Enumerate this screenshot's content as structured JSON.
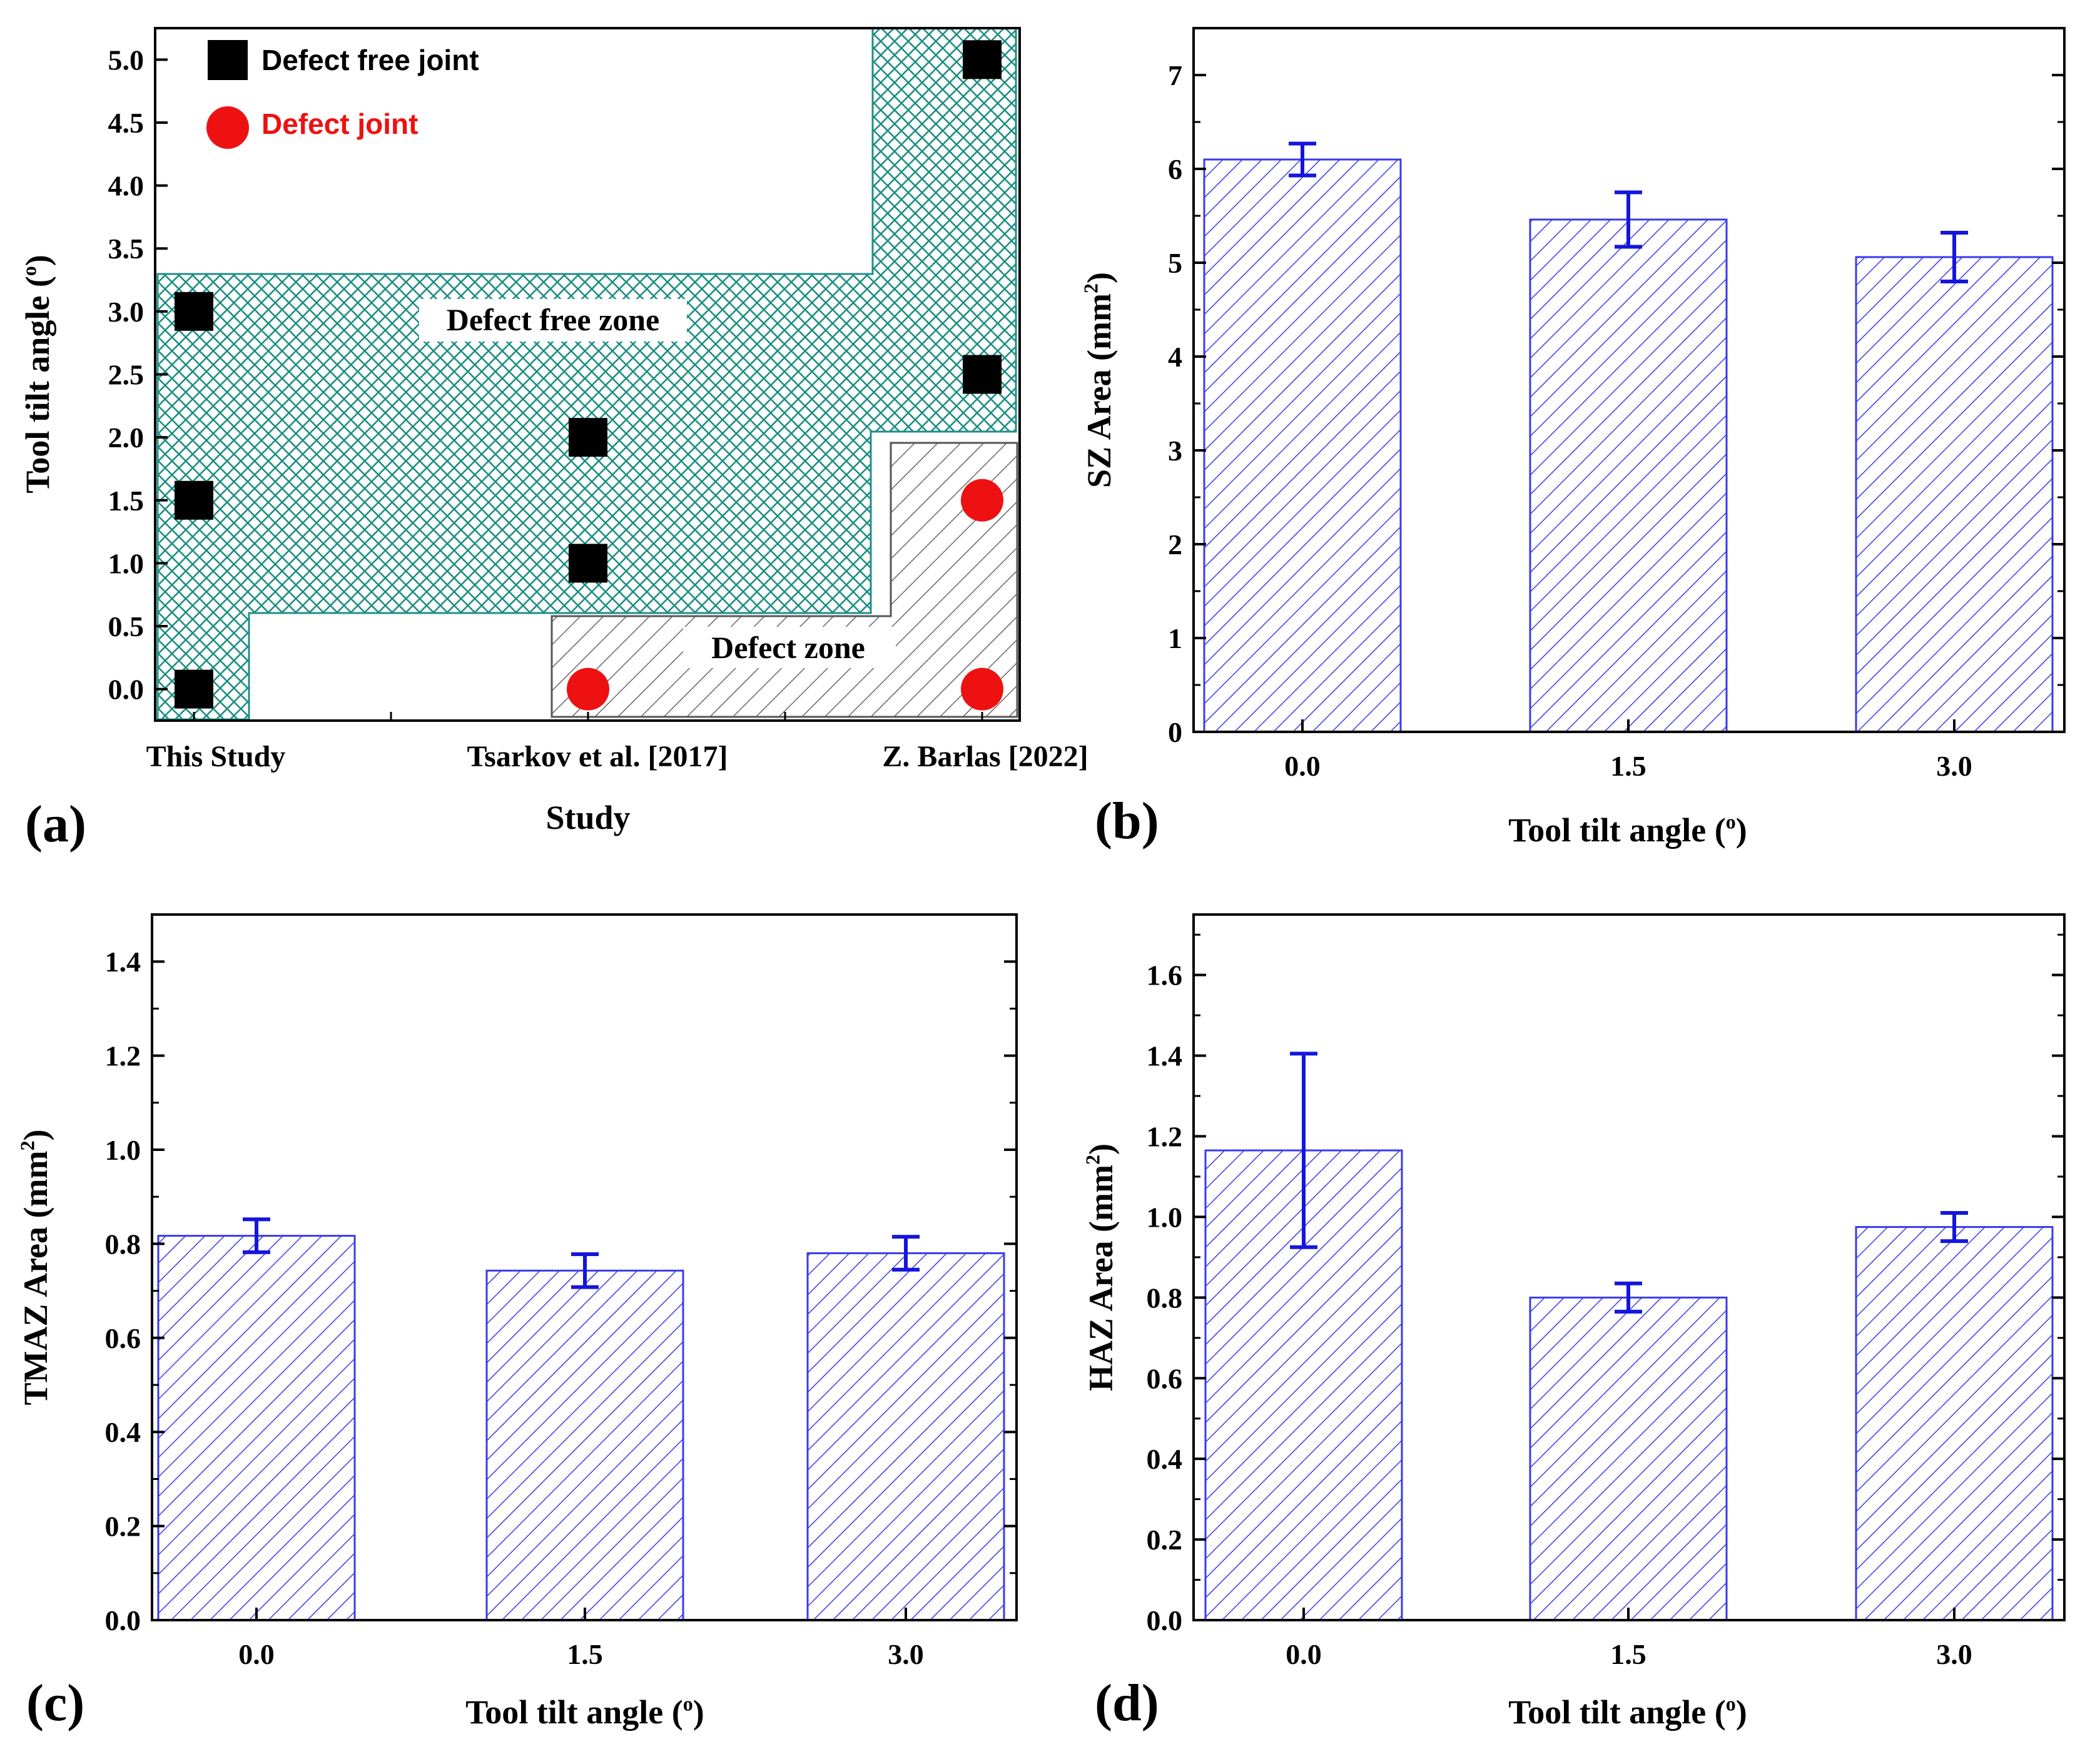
{
  "figure": {
    "panels": [
      "(a)",
      "(b)",
      "(c)",
      "(d)"
    ]
  },
  "colors": {
    "bar_hatch": "#3a3aee",
    "error_bar": "#1515dd",
    "safe_zone": "#1e8f85",
    "defect_zone": "#555555",
    "defect_marker": "#ee1111",
    "free_marker": "#000000"
  },
  "chart_data": [
    {
      "panel": "(a)",
      "type": "scatter",
      "xlabel": "Study",
      "ylabel": "Tool tilt angle (o)",
      "ylabel_main": "Tool tilt angle (",
      "ylabel_sup": "o",
      "ylabel_close": ")",
      "categories": [
        "This Study",
        "Tsarkov et al. [2017]",
        "Z. Barlas [2022]"
      ],
      "ylim": [
        -0.25,
        5.25
      ],
      "yticks": [
        "0.0",
        "0.5",
        "1.0",
        "1.5",
        "2.0",
        "2.5",
        "3.0",
        "3.5",
        "4.0",
        "4.5",
        "5.0"
      ],
      "series": [
        {
          "name": "Defect free joint",
          "marker": "square",
          "points": [
            {
              "x": "This Study",
              "y": 0.0
            },
            {
              "x": "This Study",
              "y": 1.5
            },
            {
              "x": "This Study",
              "y": 3.0
            },
            {
              "x": "Tsarkov et al. [2017]",
              "y": 1.0
            },
            {
              "x": "Tsarkov et al. [2017]",
              "y": 2.0
            },
            {
              "x": "Z. Barlas [2022]",
              "y": 2.5
            },
            {
              "x": "Z. Barlas [2022]",
              "y": 5.0
            }
          ]
        },
        {
          "name": "Defect joint",
          "marker": "circle",
          "points": [
            {
              "x": "Tsarkov et al. [2017]",
              "y": 0.0
            },
            {
              "x": "Z. Barlas [2022]",
              "y": 0.0
            },
            {
              "x": "Z. Barlas [2022]",
              "y": 1.5
            }
          ]
        }
      ],
      "annotations": [
        "Defect free zone",
        "Defect zone"
      ]
    },
    {
      "panel": "(b)",
      "type": "bar",
      "categories": [
        "0.0",
        "1.5",
        "3.0"
      ],
      "values": [
        6.1,
        5.46,
        5.06
      ],
      "errors": [
        0.17,
        0.29,
        0.26
      ],
      "xlabel": "Tool tilt angle (o)",
      "xlabel_main": "Tool tilt angle (",
      "xlabel_sup": "o",
      "xlabel_close": ")",
      "ylabel": "SZ Area (mm2)",
      "ylabel_main": "SZ Area (mm",
      "ylabel_sup": "2",
      "ylabel_close": ")",
      "ylim": [
        0,
        7.5
      ],
      "yticks": [
        "0",
        "1",
        "2",
        "3",
        "4",
        "5",
        "6",
        "7"
      ]
    },
    {
      "panel": "(c)",
      "type": "bar",
      "categories": [
        "0.0",
        "1.5",
        "3.0"
      ],
      "values": [
        0.817,
        0.743,
        0.78
      ],
      "errors": [
        0.035,
        0.035,
        0.035
      ],
      "xlabel": "Tool tilt angle (o)",
      "xlabel_main": "Tool tilt angle (",
      "xlabel_sup": "o",
      "xlabel_close": ")",
      "ylabel": "TMAZ Area (mm2)",
      "ylabel_main": "TMAZ Area (mm",
      "ylabel_sup": "2",
      "ylabel_close": ")",
      "ylim": [
        0,
        1.5
      ],
      "yticks": [
        "0.0",
        "0.2",
        "0.4",
        "0.6",
        "0.8",
        "1.0",
        "1.2",
        "1.4"
      ]
    },
    {
      "panel": "(d)",
      "type": "bar",
      "categories": [
        "0.0",
        "1.5",
        "3.0"
      ],
      "values": [
        1.165,
        0.8,
        0.975
      ],
      "errors": [
        0.24,
        0.035,
        0.035
      ],
      "xlabel": "Tool tilt angle (o)",
      "xlabel_main": "Tool tilt angle (",
      "xlabel_sup": "o",
      "xlabel_close": ")",
      "ylabel": "HAZ Area (mm2)",
      "ylabel_main": "HAZ Area (mm",
      "ylabel_sup": "2",
      "ylabel_close": ")",
      "ylim": [
        0,
        1.75
      ],
      "yticks": [
        "0.0",
        "0.2",
        "0.4",
        "0.6",
        "0.8",
        "1.0",
        "1.2",
        "1.4",
        "1.6"
      ]
    }
  ]
}
